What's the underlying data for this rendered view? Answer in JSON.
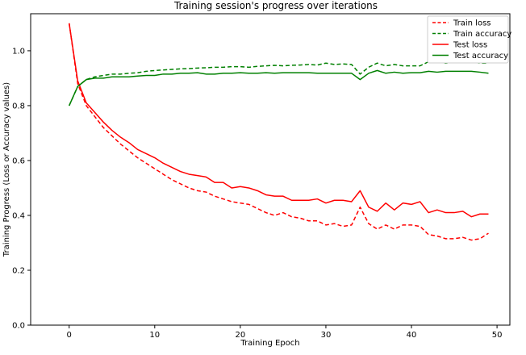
{
  "chart_data": {
    "type": "line",
    "title": "Training session's progress over iterations",
    "xlabel": "Training Epoch",
    "ylabel": "Training Progress (Loss or Accuracy values)",
    "xlim": [
      -4.5,
      51.5
    ],
    "ylim": [
      0.0,
      1.135
    ],
    "xticks": [
      0,
      10,
      20,
      30,
      40,
      50
    ],
    "yticks": [
      0.0,
      0.2,
      0.4,
      0.6,
      0.8,
      1.0
    ],
    "xtick_labels": [
      "0",
      "10",
      "20",
      "30",
      "40",
      "50"
    ],
    "ytick_labels": [
      "0.0",
      "0.2",
      "0.4",
      "0.6",
      "0.8",
      "1.0"
    ],
    "grid": false,
    "legend_position": "top-right",
    "x": [
      0,
      1,
      2,
      3,
      4,
      5,
      6,
      7,
      8,
      9,
      10,
      11,
      12,
      13,
      14,
      15,
      16,
      17,
      18,
      19,
      20,
      21,
      22,
      23,
      24,
      25,
      26,
      27,
      28,
      29,
      30,
      31,
      32,
      33,
      34,
      35,
      36,
      37,
      38,
      39,
      40,
      41,
      42,
      43,
      44,
      45,
      46,
      47,
      48,
      49
    ],
    "series": [
      {
        "name": "Train loss",
        "color": "#ff0000",
        "dash": true,
        "values": [
          1.1,
          0.88,
          0.8,
          0.76,
          0.72,
          0.69,
          0.66,
          0.635,
          0.61,
          0.59,
          0.57,
          0.55,
          0.53,
          0.515,
          0.5,
          0.49,
          0.485,
          0.47,
          0.46,
          0.45,
          0.445,
          0.44,
          0.425,
          0.41,
          0.4,
          0.41,
          0.395,
          0.39,
          0.38,
          0.38,
          0.365,
          0.37,
          0.36,
          0.365,
          0.43,
          0.37,
          0.35,
          0.365,
          0.35,
          0.365,
          0.365,
          0.36,
          0.33,
          0.325,
          0.315,
          0.315,
          0.32,
          0.31,
          0.315,
          0.335
        ]
      },
      {
        "name": "Train accuracy",
        "color": "#008000",
        "dash": true,
        "values": [
          0.8,
          0.87,
          0.895,
          0.905,
          0.91,
          0.915,
          0.915,
          0.918,
          0.92,
          0.925,
          0.928,
          0.93,
          0.932,
          0.934,
          0.935,
          0.937,
          0.938,
          0.94,
          0.94,
          0.942,
          0.942,
          0.94,
          0.943,
          0.945,
          0.947,
          0.945,
          0.947,
          0.948,
          0.95,
          0.948,
          0.955,
          0.95,
          0.952,
          0.95,
          0.915,
          0.94,
          0.955,
          0.945,
          0.95,
          0.945,
          0.945,
          0.945,
          0.96,
          0.962,
          0.955,
          0.958,
          0.958,
          0.96,
          0.955,
          0.955
        ]
      },
      {
        "name": "Test loss",
        "color": "#ff0000",
        "dash": false,
        "values": [
          1.1,
          0.89,
          0.81,
          0.775,
          0.74,
          0.71,
          0.685,
          0.665,
          0.64,
          0.625,
          0.61,
          0.59,
          0.575,
          0.56,
          0.55,
          0.545,
          0.54,
          0.52,
          0.52,
          0.5,
          0.505,
          0.5,
          0.49,
          0.475,
          0.47,
          0.47,
          0.455,
          0.455,
          0.455,
          0.46,
          0.445,
          0.455,
          0.455,
          0.45,
          0.49,
          0.43,
          0.415,
          0.445,
          0.42,
          0.445,
          0.44,
          0.45,
          0.41,
          0.42,
          0.41,
          0.41,
          0.415,
          0.395,
          0.405,
          0.405
        ]
      },
      {
        "name": "Test accuracy",
        "color": "#008000",
        "dash": false,
        "values": [
          0.8,
          0.87,
          0.895,
          0.9,
          0.9,
          0.905,
          0.905,
          0.905,
          0.908,
          0.91,
          0.91,
          0.915,
          0.915,
          0.918,
          0.918,
          0.92,
          0.915,
          0.915,
          0.918,
          0.918,
          0.92,
          0.918,
          0.918,
          0.92,
          0.918,
          0.92,
          0.92,
          0.92,
          0.92,
          0.918,
          0.918,
          0.918,
          0.918,
          0.918,
          0.895,
          0.918,
          0.928,
          0.918,
          0.922,
          0.918,
          0.92,
          0.92,
          0.925,
          0.922,
          0.925,
          0.925,
          0.925,
          0.925,
          0.922,
          0.918
        ]
      }
    ]
  }
}
